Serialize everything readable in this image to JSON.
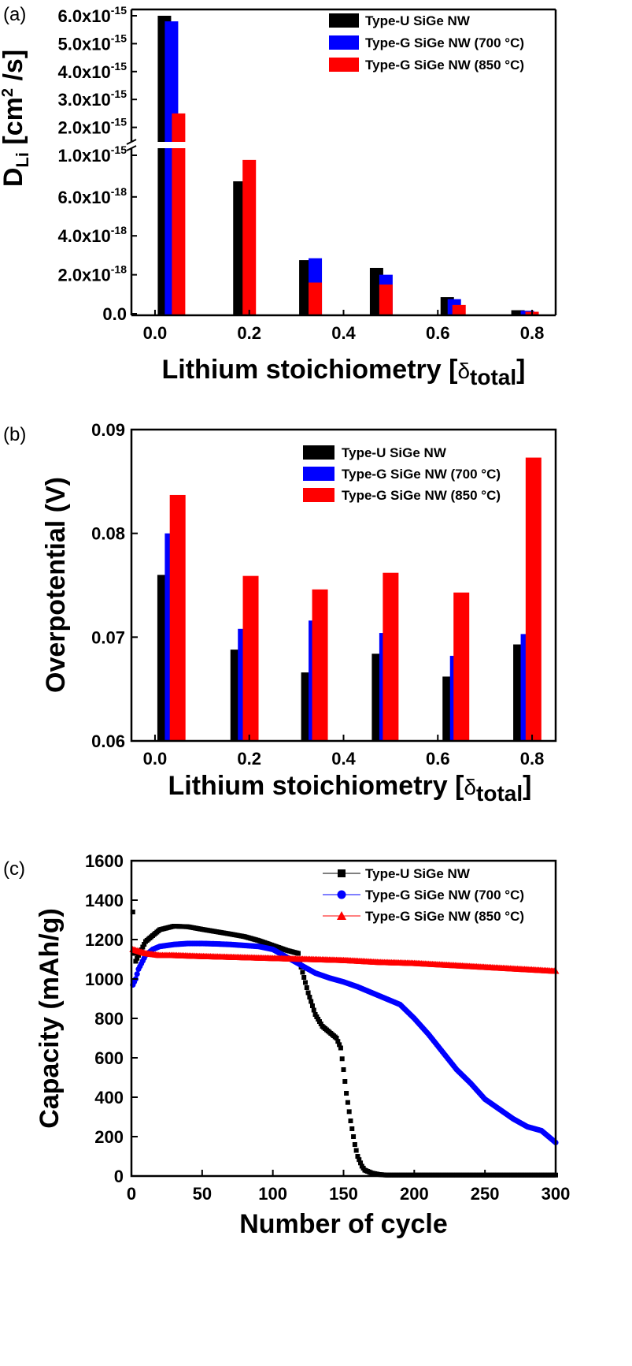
{
  "chart_data": [
    {
      "type": "bar",
      "panel_label": "(a)",
      "xlabel_main": "Lithium stoichiometry [",
      "xlabel_sym": "δ",
      "xlabel_sub": "total",
      "xlabel_end": "]",
      "ylabel_main": "D",
      "ylabel_sub": "Li",
      "ylabel_unit": " [cm",
      "ylabel_sup": "2",
      "ylabel_end": " /s]",
      "x_ticks": [
        "0.0",
        "0.2",
        "0.4",
        "0.6",
        "0.8"
      ],
      "xlim": [
        -0.05,
        0.85
      ],
      "y_axis_break": true,
      "upper_ticks": [
        {
          "mant": "1.0x10",
          "exp": "-15",
          "v": 1.0
        },
        {
          "mant": "2.0x10",
          "exp": "-15",
          "v": 2.0
        },
        {
          "mant": "3.0x10",
          "exp": "-15",
          "v": 3.0
        },
        {
          "mant": "4.0x10",
          "exp": "-15",
          "v": 4.0
        },
        {
          "mant": "5.0x10",
          "exp": "-15",
          "v": 5.0
        },
        {
          "mant": "6.0x10",
          "exp": "-15",
          "v": 6.0
        }
      ],
      "lower_ticks": [
        {
          "mant": "0.0",
          "exp": "",
          "v": 0
        },
        {
          "mant": "2.0x10",
          "exp": "-18",
          "v": 2.0
        },
        {
          "mant": "4.0x10",
          "exp": "-18",
          "v": 4.0
        },
        {
          "mant": "6.0x10",
          "exp": "-18",
          "v": 6.0
        }
      ],
      "series": [
        {
          "name": "Type-U SiGe NW",
          "color": "#000000",
          "x": [
            0.02,
            0.18,
            0.32,
            0.47,
            0.62,
            0.77
          ],
          "values": [
            "6.0e-15",
            "6.8e-18",
            "2.75e-18",
            "2.35e-18",
            "0.85e-18",
            "0.18e-18"
          ]
        },
        {
          "name": "Type-G SiGe NW (700 °C)",
          "color": "#0000ff",
          "x": [
            0.035,
            0.18,
            0.34,
            0.49,
            0.635,
            0.79
          ],
          "values": [
            "5.8e-15",
            "0",
            "2.85e-18",
            "2.0e-18",
            "0.75e-18",
            "0.15e-18"
          ]
        },
        {
          "name": "Type-G SiGe NW (850 °C)",
          "color": "#ff0000",
          "x": [
            0.05,
            0.2,
            0.34,
            0.49,
            0.645,
            0.8
          ],
          "values": [
            "2.5e-15",
            "7.9e-18",
            "1.6e-18",
            "1.5e-18",
            "0.45e-18",
            "0.1e-18"
          ]
        }
      ]
    },
    {
      "type": "bar",
      "panel_label": "(b)",
      "xlabel_main": "Lithium stoichiometry [",
      "xlabel_sym": "δ",
      "xlabel_sub": "total",
      "xlabel_end": "]",
      "ylabel": "Overpotential (V)",
      "x_ticks": [
        "0.0",
        "0.2",
        "0.4",
        "0.6",
        "0.8"
      ],
      "y_ticks": [
        "0.06",
        "0.07",
        "0.08",
        "0.09"
      ],
      "xlim": [
        -0.05,
        0.85
      ],
      "ylim": [
        0.06,
        0.09
      ],
      "series": [
        {
          "name": "Type-U SiGe NW",
          "color": "#000000",
          "x": [
            0.015,
            0.17,
            0.32,
            0.47,
            0.62,
            0.77
          ],
          "values": [
            0.076,
            0.0688,
            0.0666,
            0.0684,
            0.0662,
            0.0693
          ]
        },
        {
          "name": "Type-G SiGe NW (700 °C)",
          "color": "#0000ff",
          "x": [
            0.03,
            0.185,
            0.335,
            0.485,
            0.635,
            0.785
          ],
          "values": [
            0.08,
            0.0708,
            0.0716,
            0.0704,
            0.0682,
            0.0703
          ]
        },
        {
          "name": "Type-G SiGe NW (850 °C)",
          "color": "#ff0000",
          "x": [
            0.048,
            0.203,
            0.35,
            0.5,
            0.65,
            0.803
          ],
          "values": [
            0.0837,
            0.0759,
            0.0746,
            0.0762,
            0.0743,
            0.0873
          ]
        }
      ]
    },
    {
      "type": "scatter",
      "panel_label": "(c)",
      "xlabel": "Number of cycle",
      "ylabel": "Capacity (mAh/g)",
      "x_ticks": [
        "0",
        "50",
        "100",
        "150",
        "200",
        "250",
        "300"
      ],
      "y_ticks": [
        "0",
        "200",
        "400",
        "600",
        "800",
        "1000",
        "1200",
        "1400",
        "1600"
      ],
      "xlim": [
        0,
        300
      ],
      "ylim": [
        0,
        1600
      ],
      "series": [
        {
          "name": "Type-U SiGe NW",
          "color": "#000000",
          "marker": "square",
          "x": [
            1,
            2,
            3,
            5,
            10,
            20,
            30,
            40,
            50,
            60,
            70,
            80,
            90,
            100,
            110,
            118,
            120,
            125,
            130,
            135,
            140,
            145,
            148,
            150,
            152,
            155,
            158,
            160,
            163,
            165,
            170,
            175,
            180,
            200,
            250,
            300
          ],
          "y": [
            1340,
            1130,
            1090,
            1120,
            1190,
            1250,
            1268,
            1265,
            1252,
            1240,
            1228,
            1215,
            1195,
            1170,
            1145,
            1130,
            1060,
            930,
            820,
            760,
            730,
            700,
            650,
            540,
            420,
            280,
            160,
            100,
            50,
            30,
            15,
            8,
            5,
            5,
            5,
            5
          ]
        },
        {
          "name": "Type-G SiGe NW (700 °C)",
          "color": "#0000ff",
          "marker": "circle",
          "x": [
            1,
            3,
            5,
            10,
            15,
            20,
            30,
            40,
            50,
            60,
            70,
            80,
            90,
            100,
            110,
            120,
            130,
            140,
            150,
            160,
            170,
            180,
            190,
            200,
            210,
            220,
            230,
            240,
            250,
            260,
            270,
            280,
            290,
            300
          ],
          "y": [
            970,
            1000,
            1050,
            1120,
            1150,
            1165,
            1175,
            1180,
            1180,
            1178,
            1175,
            1170,
            1165,
            1150,
            1110,
            1070,
            1030,
            1005,
            985,
            960,
            930,
            900,
            870,
            800,
            720,
            630,
            540,
            470,
            390,
            340,
            290,
            250,
            230,
            170
          ]
        },
        {
          "name": "Type-G SiGe NW (850 °C)",
          "color": "#ff0000",
          "marker": "triangle",
          "x": [
            1,
            10,
            20,
            30,
            50,
            75,
            100,
            125,
            150,
            175,
            200,
            225,
            250,
            275,
            300
          ],
          "y": [
            1150,
            1130,
            1120,
            1120,
            1115,
            1110,
            1105,
            1100,
            1095,
            1085,
            1080,
            1070,
            1060,
            1050,
            1040
          ]
        }
      ]
    }
  ]
}
